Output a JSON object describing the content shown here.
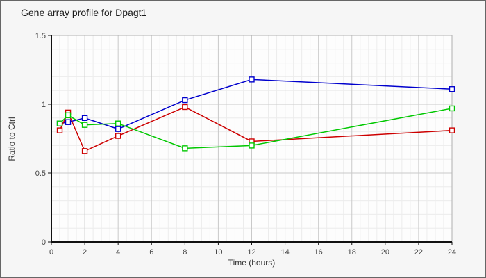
{
  "chart_data": {
    "type": "line",
    "title": "Gene array profile for Dpagt1",
    "xlabel": "Time (hours)",
    "ylabel": "Ratio to Ctrl",
    "x": [
      0.5,
      1,
      2,
      4,
      8,
      12,
      24
    ],
    "series": [
      {
        "name": "series-blue",
        "color": "#0000cd",
        "values": [
          0.86,
          0.87,
          0.9,
          0.82,
          1.03,
          1.18,
          1.11
        ]
      },
      {
        "name": "series-red",
        "color": "#cd0000",
        "values": [
          0.81,
          0.94,
          0.66,
          0.77,
          0.98,
          0.73,
          0.81
        ]
      },
      {
        "name": "series-green",
        "color": "#00c800",
        "values": [
          0.86,
          0.92,
          0.85,
          0.86,
          0.68,
          0.7,
          0.97
        ]
      }
    ],
    "xlim": [
      0,
      24
    ],
    "ylim": [
      0,
      1.5
    ],
    "x_ticks": [
      {
        "v": 0,
        "label": "0"
      },
      {
        "v": 2,
        "label": "2"
      },
      {
        "v": 4,
        "label": "4"
      },
      {
        "v": 6,
        "label": "6"
      },
      {
        "v": 8,
        "label": "8"
      },
      {
        "v": 10,
        "label": "10"
      },
      {
        "v": 12,
        "label": "12"
      },
      {
        "v": 14,
        "label": "14"
      },
      {
        "v": 16,
        "label": "16"
      },
      {
        "v": 18,
        "label": "18"
      },
      {
        "v": 20,
        "label": "20"
      },
      {
        "v": 22,
        "label": "22"
      },
      {
        "v": 24,
        "label": "24"
      }
    ],
    "y_ticks": [
      {
        "v": 0,
        "label": "0"
      },
      {
        "v": 0.5,
        "label": "0.5"
      },
      {
        "v": 1,
        "label": "1"
      },
      {
        "v": 1.5,
        "label": "1.5"
      }
    ],
    "x_minor_step": 0.5,
    "y_minor_step": 0.1,
    "grid": true,
    "legend": "none",
    "marker": "open-square"
  },
  "colors": {
    "outer_bg": "#f6f6f6",
    "plot_bg": "#fdfdfd",
    "grid_major": "#c9c9c9",
    "grid_minor": "#ececec",
    "plot_frame": "#b0b0b0",
    "axis": "#111111",
    "tick_text": "#444444",
    "frame_border": "#666666"
  }
}
